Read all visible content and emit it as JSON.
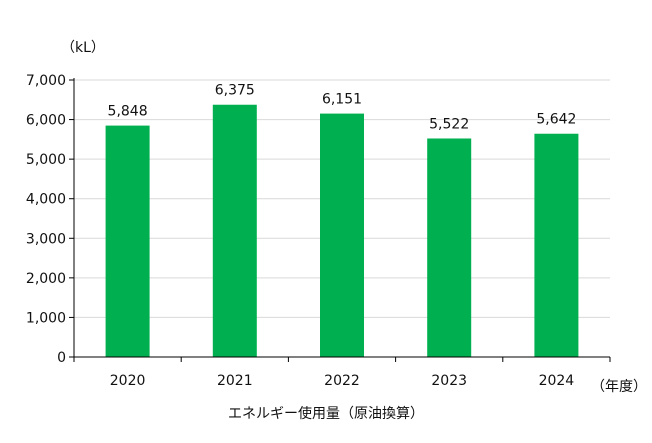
{
  "chart_data": {
    "type": "bar",
    "categories": [
      "2020",
      "2021",
      "2022",
      "2023",
      "2024"
    ],
    "values": [
      5848,
      6375,
      6151,
      5522,
      5642
    ],
    "value_labels": [
      "5,848",
      "6,375",
      "6,151",
      "5,522",
      "5,642"
    ],
    "title": "",
    "ylabel": "（kL）",
    "xlabel": "（年度）",
    "caption": "エネルギー使用量（原油換算）",
    "ylim": [
      0,
      7000
    ],
    "yticks": [
      0,
      1000,
      2000,
      3000,
      4000,
      5000,
      6000,
      7000
    ],
    "ytick_labels": [
      "0",
      "1,000",
      "2,000",
      "3,000",
      "4,000",
      "5,000",
      "6,000",
      "7,000"
    ],
    "grid": true,
    "legend": "none",
    "bar_color": "#00b050",
    "grid_color": "#d9d9d9",
    "axis_color": "#000000"
  }
}
